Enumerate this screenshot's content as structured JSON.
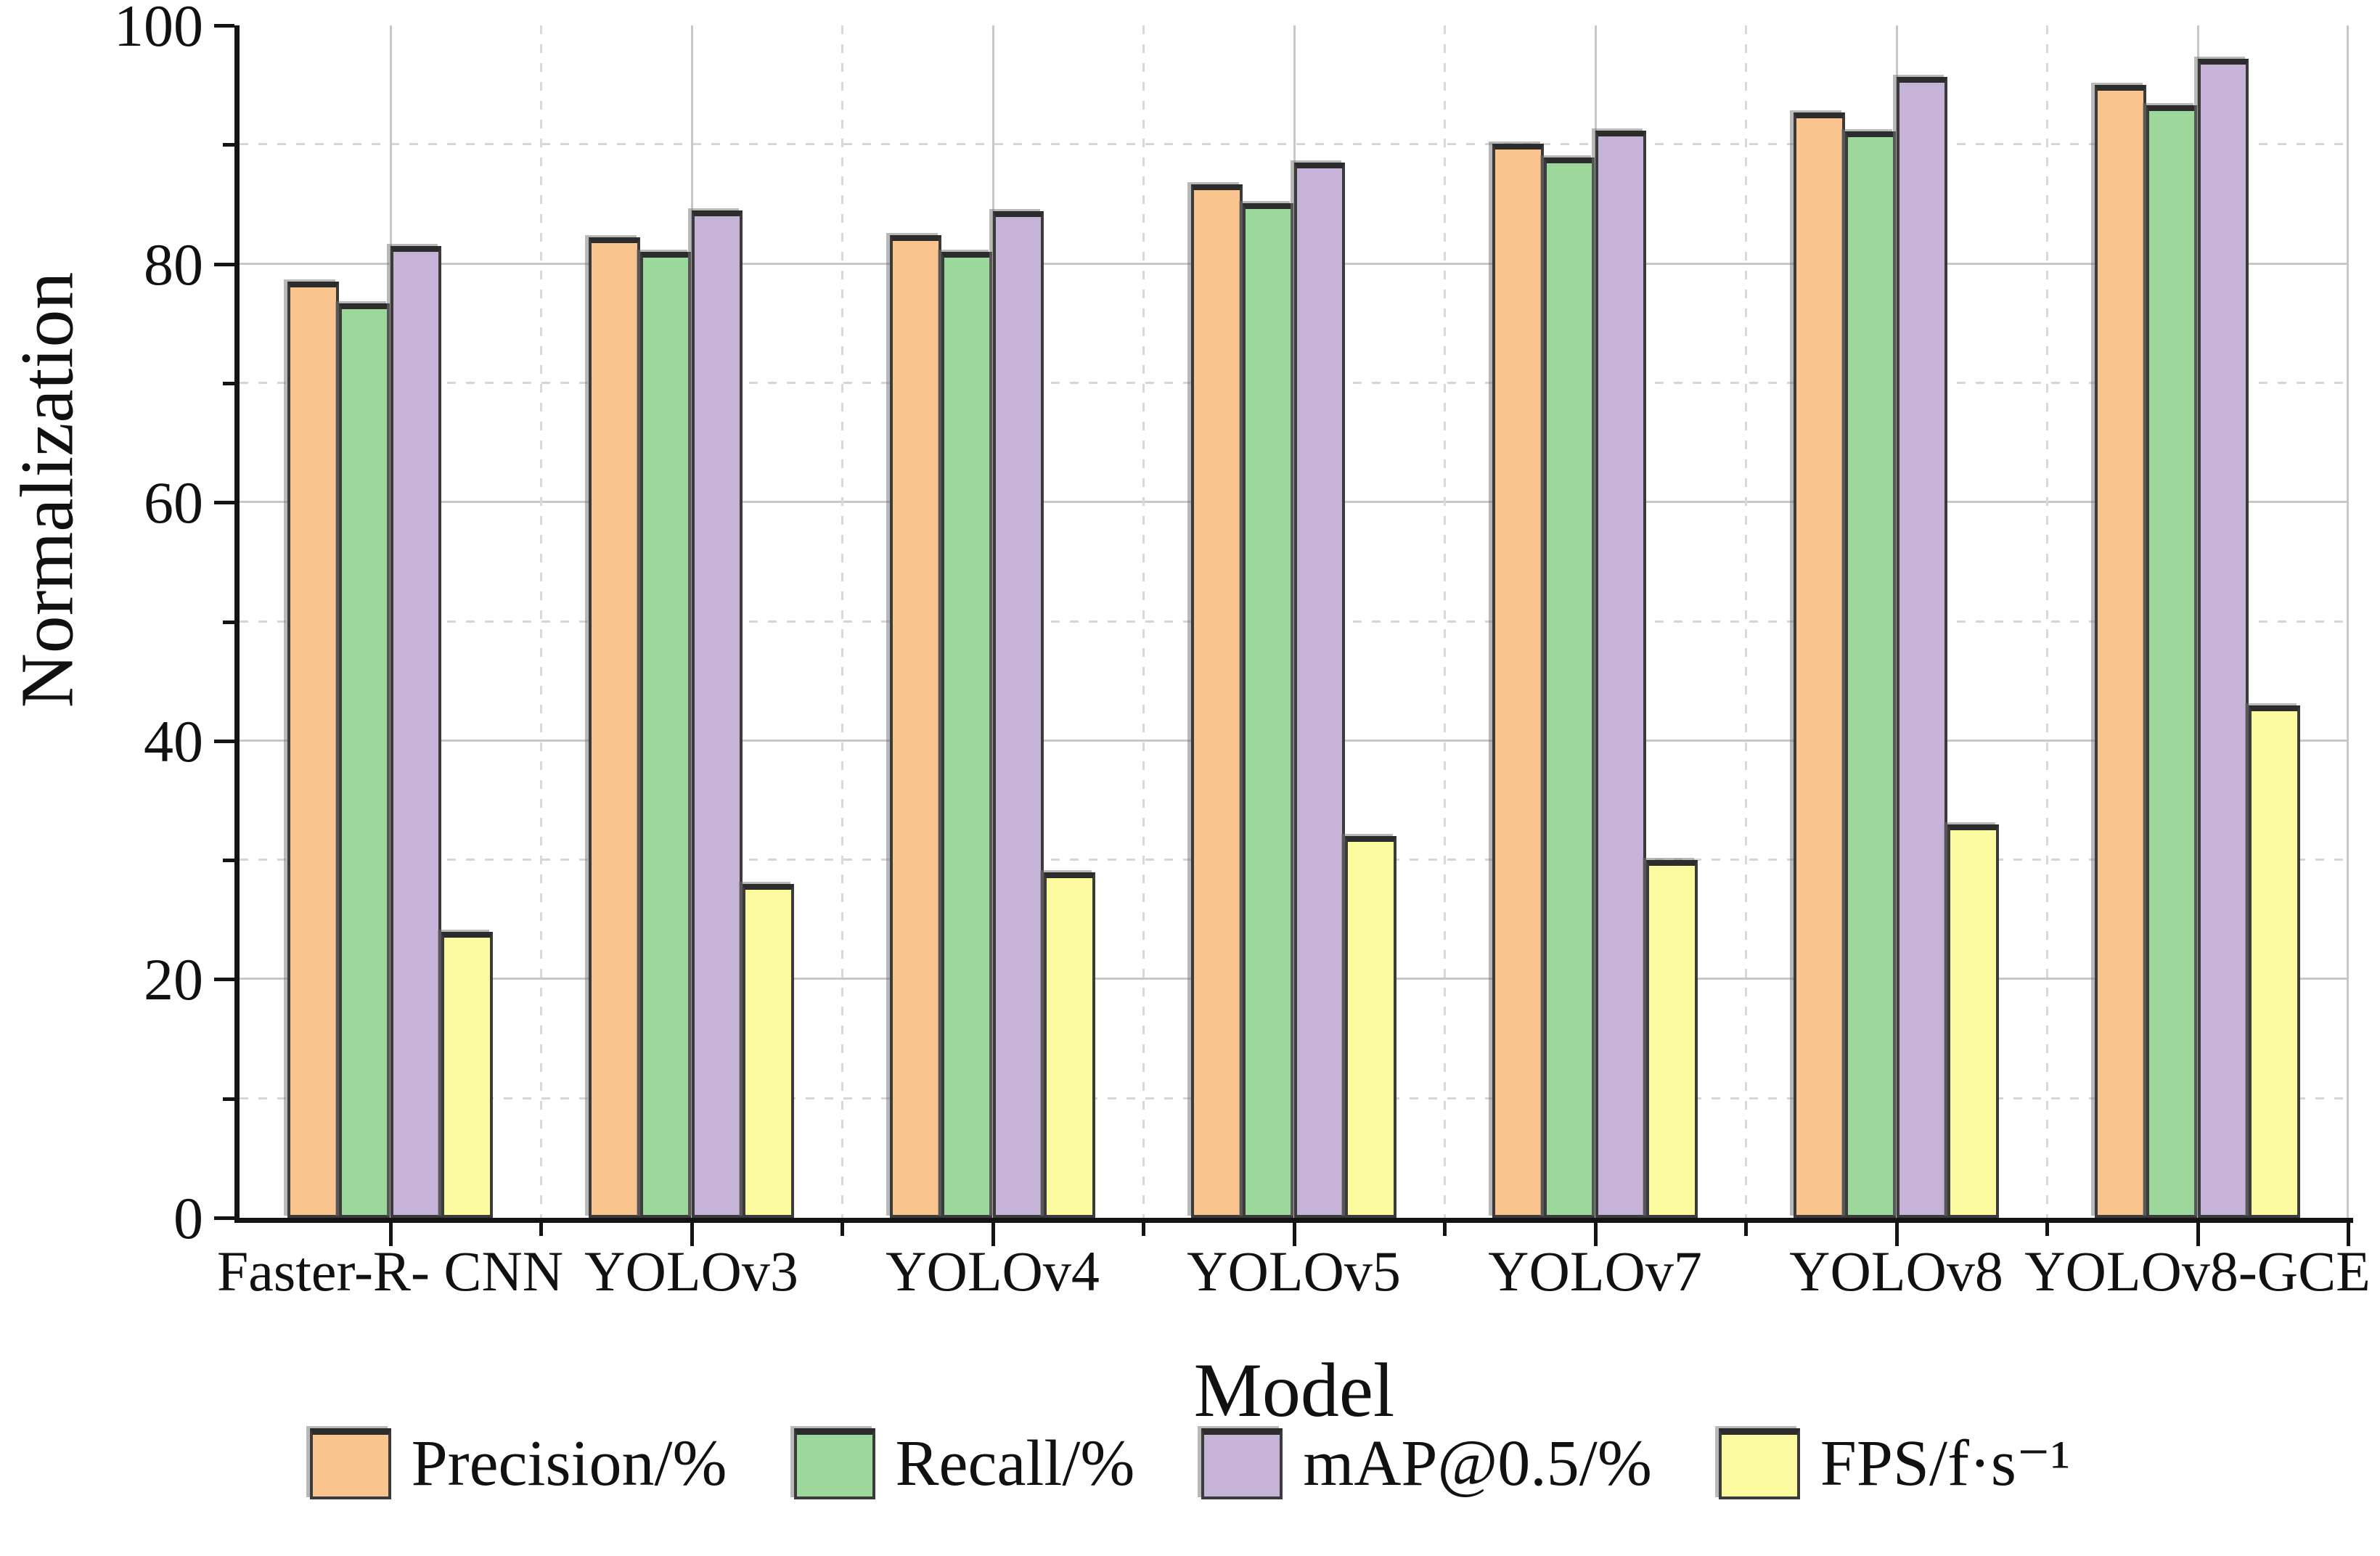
{
  "figure": {
    "ylabel": "Normalization",
    "xlabel": "Model"
  },
  "chart_data": {
    "type": "bar",
    "title": "",
    "xlabel": "Model",
    "ylabel": "Normalization",
    "ylim": [
      0,
      100
    ],
    "yticks_major": [
      0,
      20,
      40,
      60,
      80,
      100
    ],
    "yticks_minor": [
      10,
      30,
      50,
      70,
      90
    ],
    "grid": {
      "horizontal_major": "solid",
      "horizontal_minor": "dashed",
      "vertical_at_category_centers": "solid",
      "vertical_at_category_boundaries": "dashed"
    },
    "legend_position": "bottom",
    "categories": [
      "Faster-R- CNN",
      "YOLOv3",
      "YOLOv4",
      "YOLOv5",
      "YOLOv7",
      "YOLOv8",
      "YOLOv8-GCE"
    ],
    "series": [
      {
        "name": "Precision/%",
        "color": "#F9C48E",
        "values": [
          78.5,
          82.2,
          82.4,
          86.7,
          90.1,
          92.7,
          95.0
        ]
      },
      {
        "name": "Recall/%",
        "color": "#9CD79B",
        "values": [
          76.7,
          81.0,
          81.0,
          85.1,
          88.9,
          91.1,
          93.3
        ]
      },
      {
        "name": "mAP@0.5/%",
        "color": "#C5B4D8",
        "values": [
          81.5,
          84.5,
          84.4,
          88.5,
          91.2,
          95.7,
          97.2
        ]
      },
      {
        "name": "FPS/f·s⁻¹",
        "color": "#FBFA9E",
        "values": [
          24,
          28,
          29,
          32,
          30,
          33,
          43
        ]
      }
    ],
    "colors": {
      "bar_border": "#3b3b3b",
      "grid_major": "#c8c8c8",
      "grid_minor": "#d9d9d9",
      "axis": "#141414"
    }
  }
}
